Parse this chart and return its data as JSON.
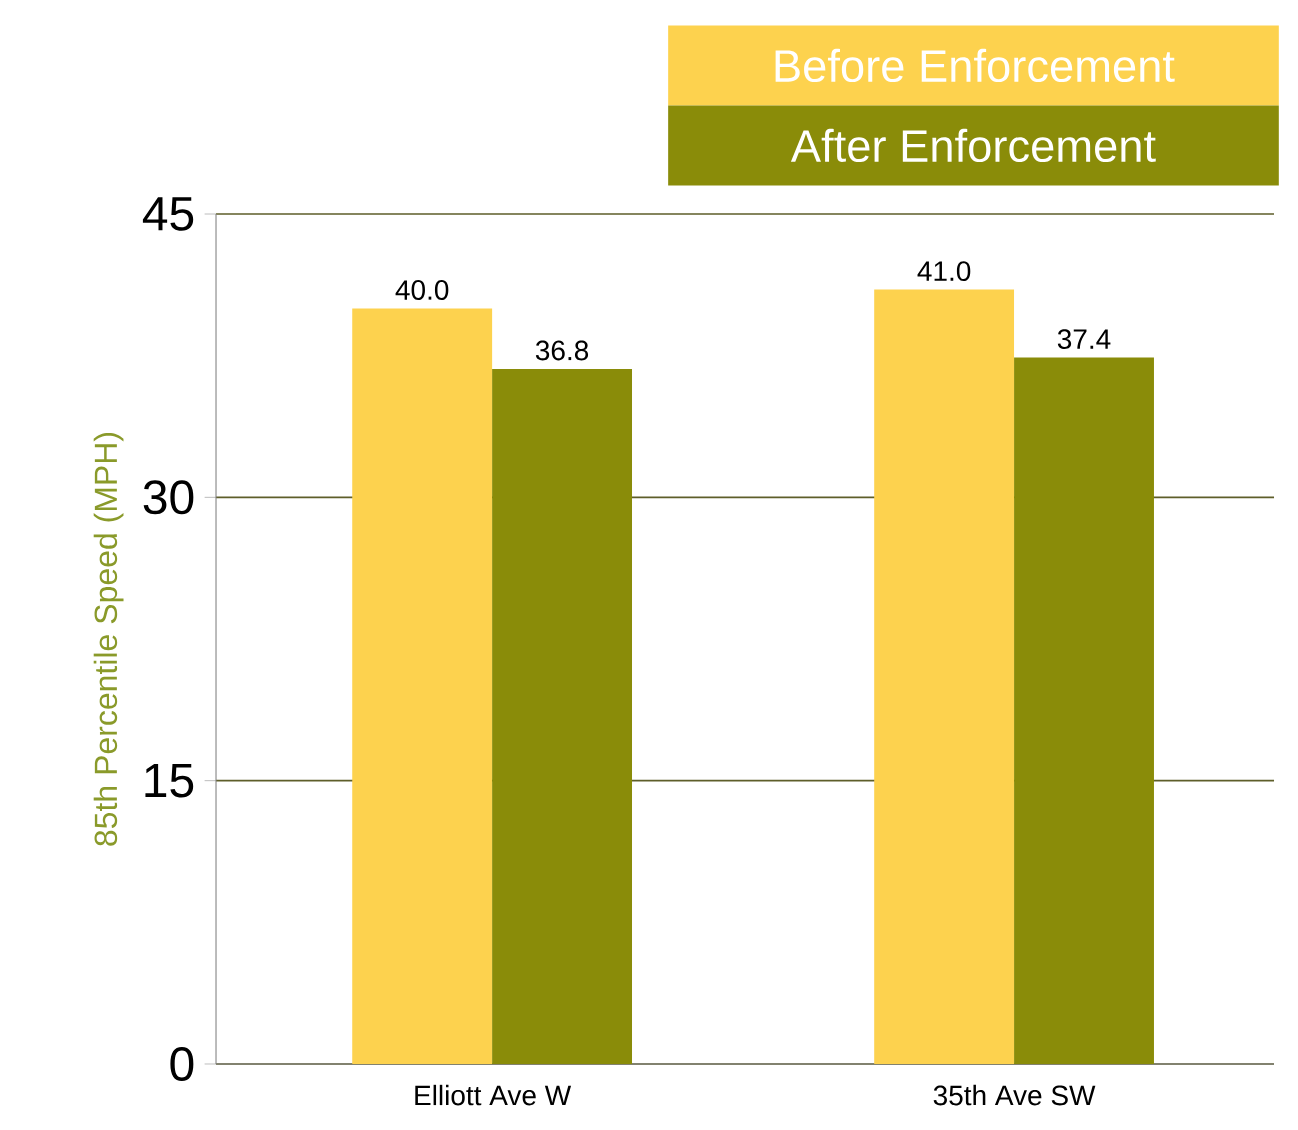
{
  "chart_data": {
    "type": "bar",
    "ylabel": "85th Percentile Speed (MPH)",
    "categories": [
      "Elliott Ave W",
      "35th Ave SW"
    ],
    "series": [
      {
        "name": "Before Enforcement",
        "color": "#fdd24e",
        "values": [
          40.0,
          41.0
        ],
        "value_labels": [
          "40.0",
          "41.0"
        ]
      },
      {
        "name": "After Enforcement",
        "color": "#8a8c09",
        "values": [
          36.8,
          37.4
        ],
        "value_labels": [
          "36.8",
          "37.4"
        ]
      }
    ],
    "ylim": [
      0,
      45
    ],
    "yticks": [
      0,
      15,
      30,
      45
    ],
    "grid": "y",
    "legend": "top right"
  }
}
